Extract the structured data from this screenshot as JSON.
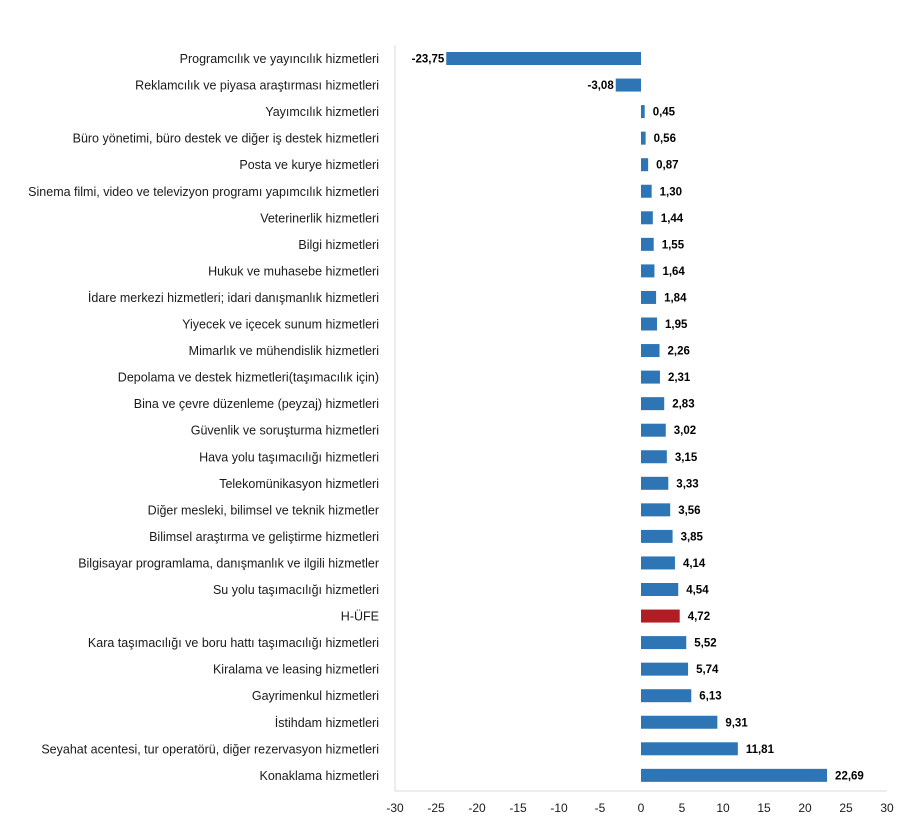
{
  "chart_data": {
    "type": "bar",
    "orientation": "horizontal",
    "title": "",
    "xlabel": "",
    "ylabel": "",
    "xlim": [
      -30,
      30
    ],
    "xticks": [
      -30,
      -25,
      -20,
      -15,
      -10,
      -5,
      0,
      5,
      10,
      15,
      20,
      25,
      30
    ],
    "grid": false,
    "legend": "none",
    "colors": {
      "default": "#2E75B6",
      "highlight": "#B01E23"
    },
    "highlight_category": "H-ÜFE",
    "categories": [
      "Programcılık ve yayıncılık hizmetleri",
      "Reklamcılık ve piyasa araştırması hizmetleri",
      "Yayımcılık hizmetleri",
      "Büro yönetimi, büro destek ve diğer iş destek hizmetleri",
      "Posta ve kurye hizmetleri",
      "Sinema filmi, video ve televizyon programı yapımcılık hizmetleri",
      "Veterinerlik hizmetleri",
      "Bilgi hizmetleri",
      "Hukuk ve muhasebe hizmetleri",
      "İdare merkezi hizmetleri; idari danışmanlık hizmetleri",
      "Yiyecek ve içecek sunum hizmetleri",
      "Mimarlık ve mühendislik hizmetleri",
      "Depolama ve destek hizmetleri(taşımacılık için)",
      "Bina ve çevre düzenleme (peyzaj) hizmetleri",
      "Güvenlik ve soruşturma hizmetleri",
      "Hava yolu taşımacılığı hizmetleri",
      "Telekomünikasyon hizmetleri",
      "Diğer mesleki, bilimsel ve teknik hizmetler",
      "Bilimsel araştırma ve geliştirme hizmetleri",
      "Bilgisayar programlama, danışmanlık ve ilgili hizmetler",
      "Su yolu taşımacılığı hizmetleri",
      "H-ÜFE",
      "Kara taşımacılığı ve boru hattı taşımacılığı hizmetleri",
      "Kiralama ve leasing hizmetleri",
      "Gayrimenkul hizmetleri",
      "İstihdam hizmetleri",
      "Seyahat acentesi, tur operatörü, diğer rezervasyon hizmetleri",
      "Konaklama hizmetleri"
    ],
    "values": [
      -23.75,
      -3.08,
      0.45,
      0.56,
      0.87,
      1.3,
      1.44,
      1.55,
      1.64,
      1.84,
      1.95,
      2.26,
      2.31,
      2.83,
      3.02,
      3.15,
      3.33,
      3.56,
      3.85,
      4.14,
      4.54,
      4.72,
      5.52,
      5.74,
      6.13,
      9.31,
      11.81,
      22.69
    ],
    "value_labels": [
      "-23,75",
      "-3,08",
      "0,45",
      "0,56",
      "0,87",
      "1,30",
      "1,44",
      "1,55",
      "1,64",
      "1,84",
      "1,95",
      "2,26",
      "2,31",
      "2,83",
      "3,02",
      "3,15",
      "3,33",
      "3,56",
      "3,85",
      "4,14",
      "4,54",
      "4,72",
      "5,52",
      "5,74",
      "6,13",
      "9,31",
      "11,81",
      "22,69"
    ]
  }
}
